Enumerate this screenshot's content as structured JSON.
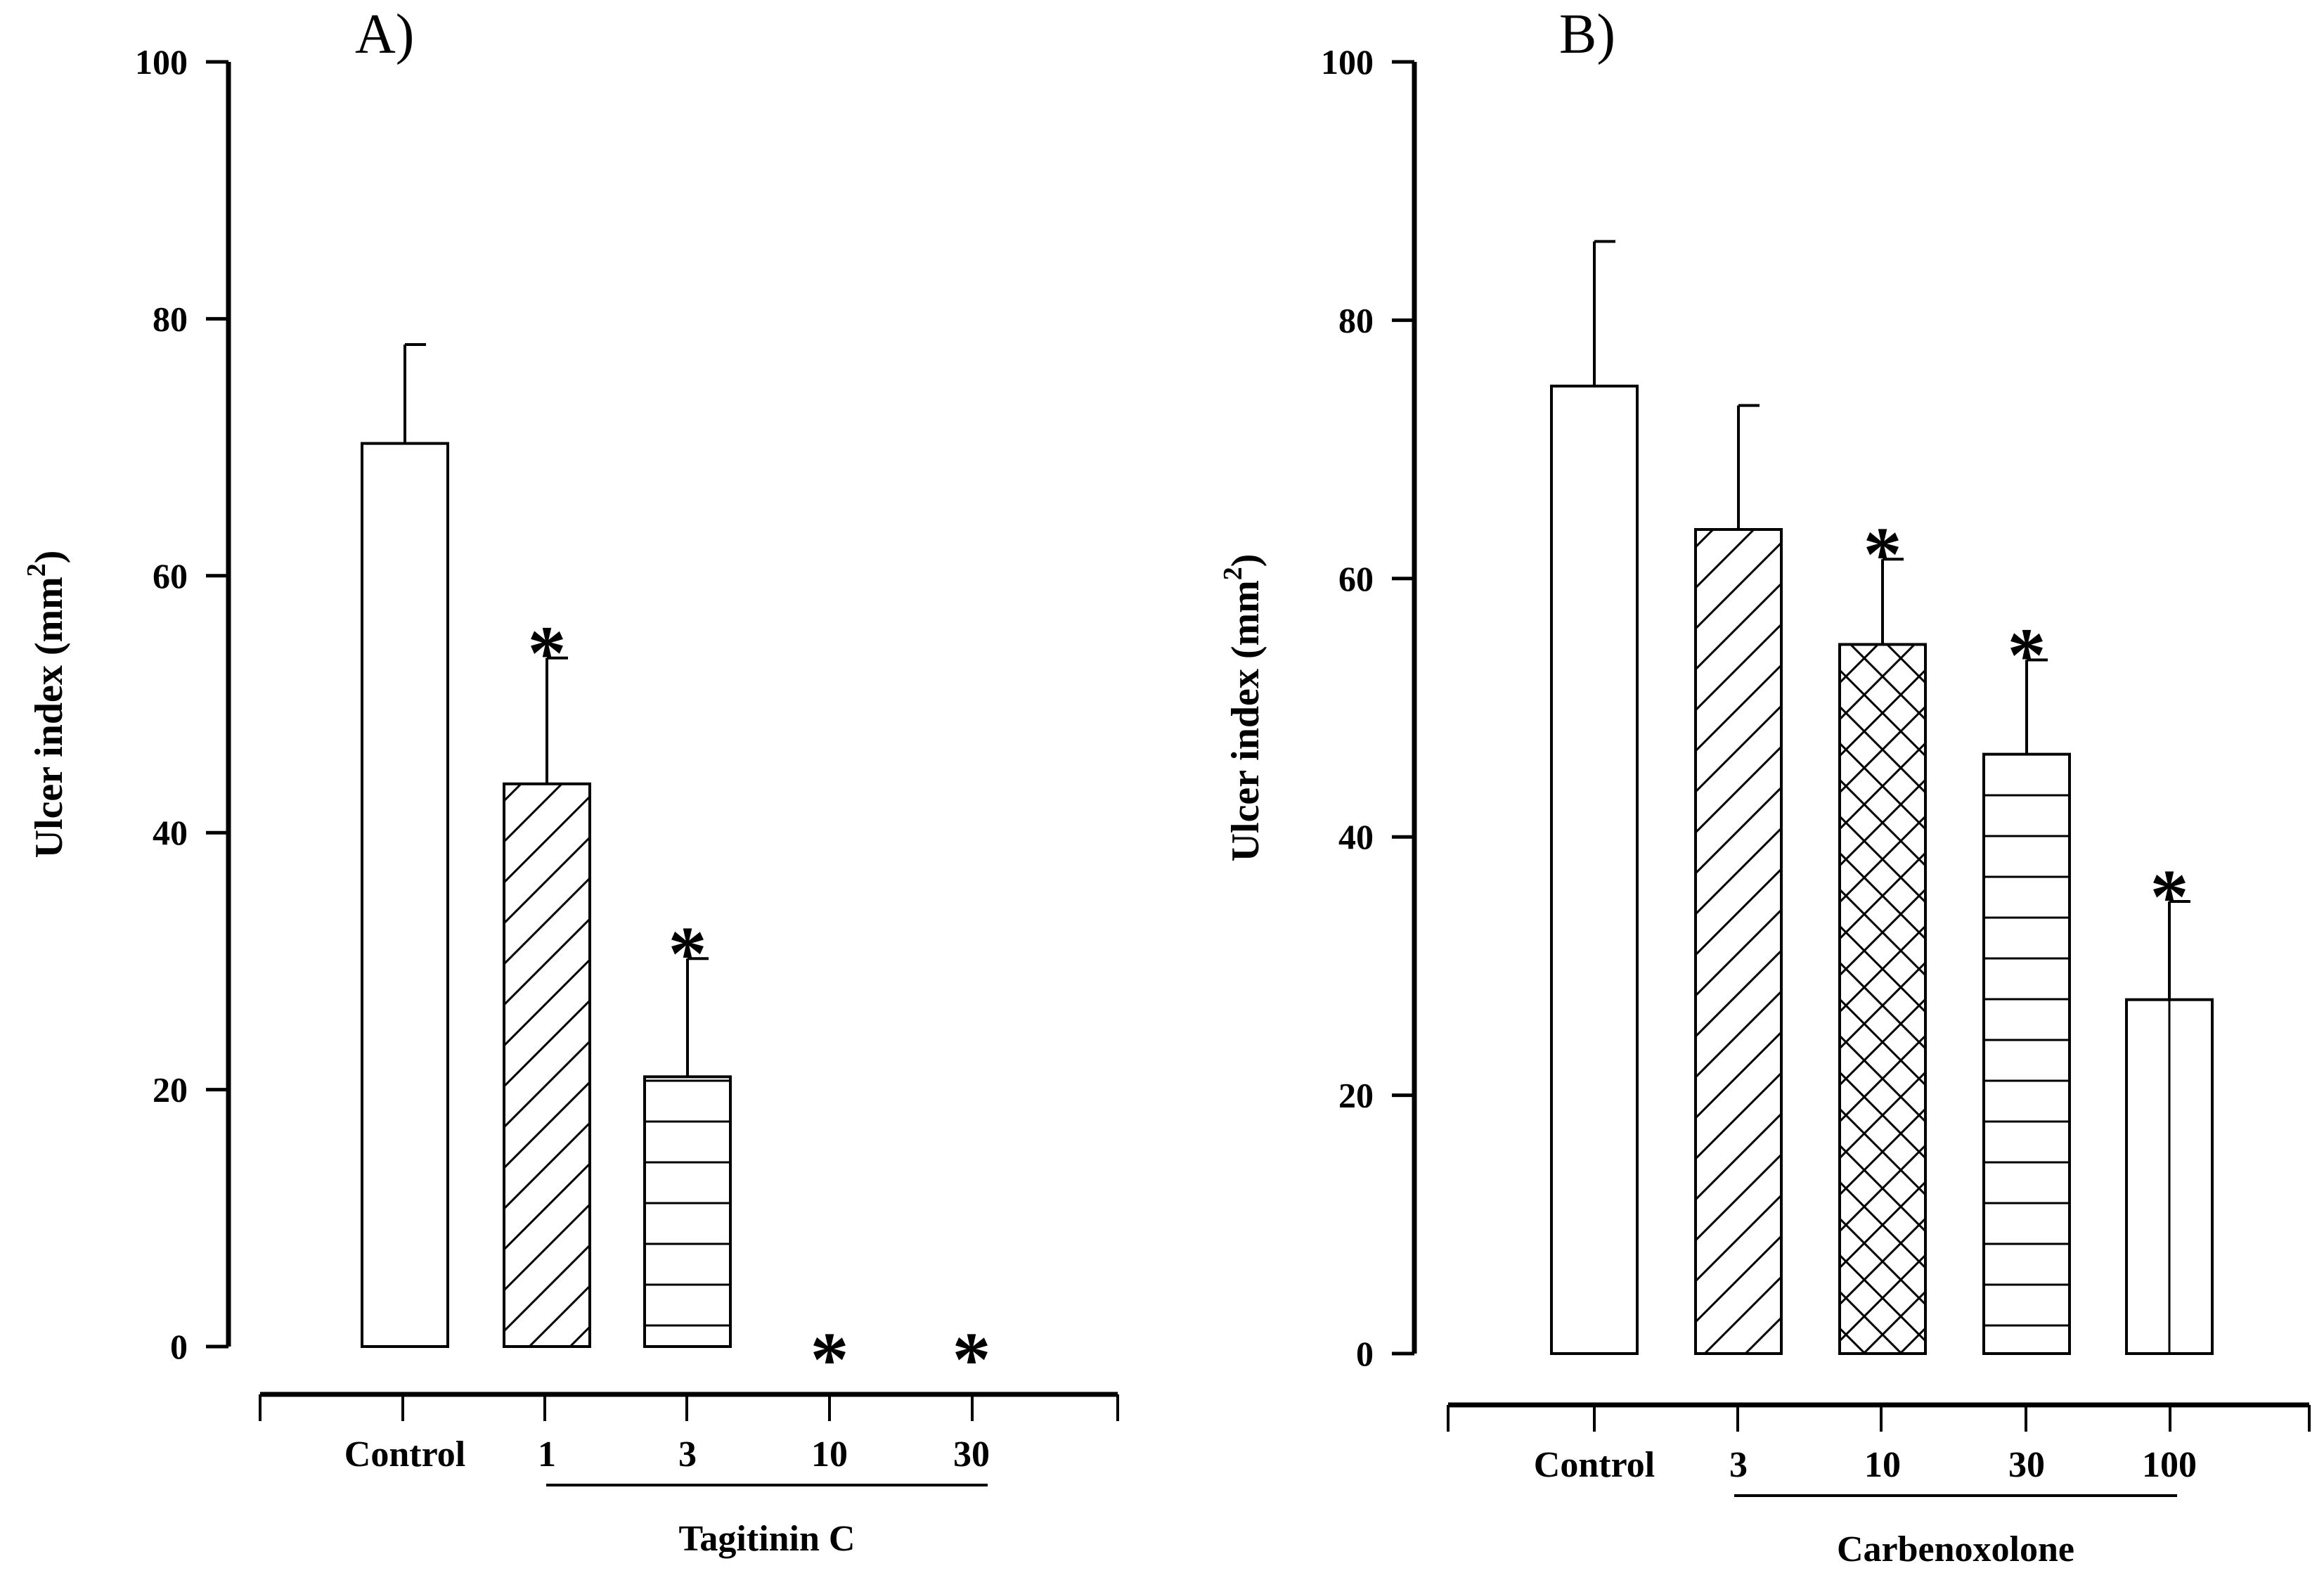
{
  "chart_data": [
    {
      "type": "bar",
      "title": "A)",
      "ylabel": "Ulcer index (mm²)",
      "ylabel_main": "Ulcer index (mm",
      "ylabel_sup": "2",
      "ylabel_end": ")",
      "ylim": [
        0,
        100
      ],
      "yticks": [
        0,
        20,
        40,
        60,
        80,
        100
      ],
      "categories": [
        "Control",
        "1",
        "3",
        "10",
        "30"
      ],
      "values": [
        70.3,
        43.8,
        21.0,
        0,
        0
      ],
      "errors": [
        7.7,
        9.8,
        9.2,
        0,
        0
      ],
      "patterns": [
        "none",
        "diagonal",
        "horizontal",
        "none",
        "none"
      ],
      "significance": [
        "",
        "*",
        "*",
        "*",
        "*"
      ],
      "group_label": "Tagitinin C",
      "group_range": [
        "1",
        "30"
      ]
    },
    {
      "type": "bar",
      "title": "B)",
      "ylabel": "Ulcer index (mm²)",
      "ylabel_main": "Ulcer index (mm",
      "ylabel_sup": "2",
      "ylabel_end": ")",
      "ylim": [
        0,
        100
      ],
      "yticks": [
        0,
        20,
        40,
        60,
        80,
        100
      ],
      "categories": [
        "Control",
        "3",
        "10",
        "30",
        "100"
      ],
      "values": [
        74.9,
        63.8,
        54.9,
        46.4,
        27.4
      ],
      "errors": [
        11.2,
        9.6,
        6.6,
        7.3,
        7.6
      ],
      "patterns": [
        "none",
        "diagonal",
        "crosshatch",
        "horizontal",
        "vertical"
      ],
      "significance": [
        "",
        "",
        "*",
        "*",
        "*"
      ],
      "group_label": "Carbenoxolone",
      "group_range": [
        "3",
        "100"
      ]
    }
  ]
}
